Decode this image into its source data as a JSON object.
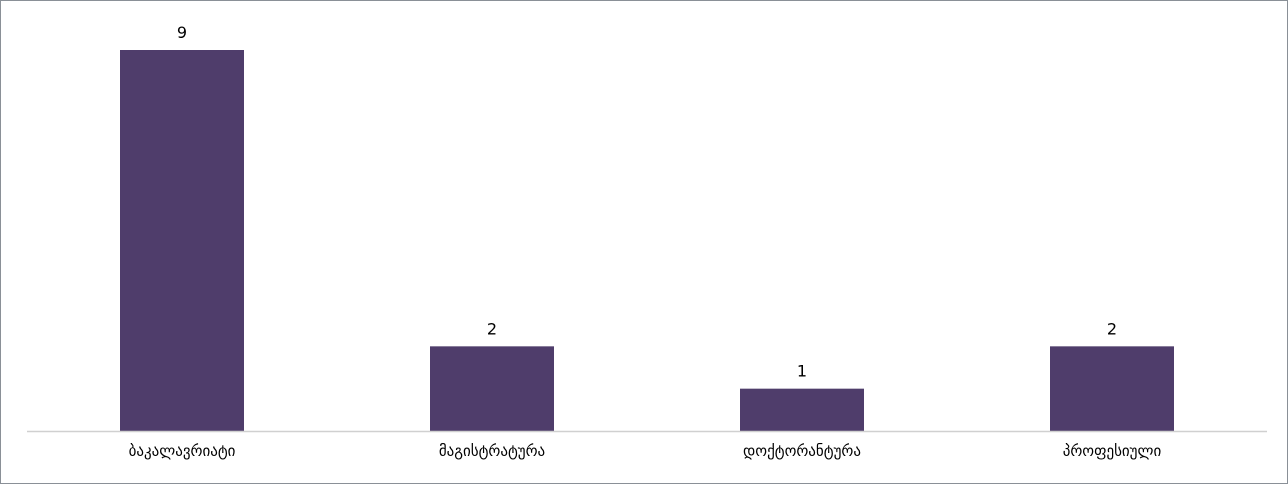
{
  "chart_data": {
    "type": "bar",
    "categories": [
      "ბაკალავრიატი",
      "მაგისტრატურა",
      "დოქტორანტურა",
      "პროფესიული"
    ],
    "values": [
      9,
      2,
      1,
      2
    ],
    "data_labels": [
      "9",
      "2",
      "1",
      "2"
    ],
    "title": "",
    "xlabel": "",
    "ylabel": "",
    "ylim": [
      0,
      9
    ],
    "grid": false,
    "legend": "none",
    "colors": {
      "bar": "#4f3d6b",
      "axis": "#d0d0d0",
      "border": "#8a9097"
    }
  }
}
